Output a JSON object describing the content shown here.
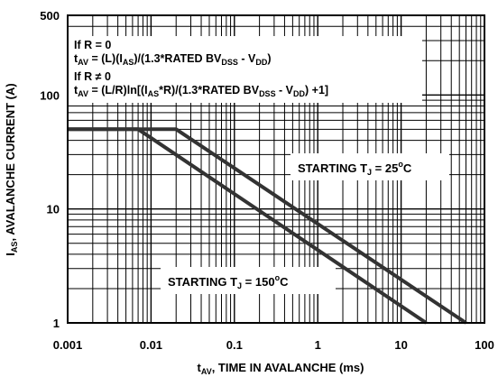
{
  "chart_data": {
    "type": "line",
    "title": "",
    "x_scale": "log",
    "y_scale": "log",
    "xlim": [
      0.001,
      100
    ],
    "ylim": [
      1,
      500
    ],
    "grid": true,
    "x_ticks": [
      {
        "value": 0.001,
        "label": "0.001"
      },
      {
        "value": 0.01,
        "label": "0.01"
      },
      {
        "value": 0.1,
        "label": "0.1"
      },
      {
        "value": 1,
        "label": "1"
      },
      {
        "value": 10,
        "label": "10"
      },
      {
        "value": 100,
        "label": "100"
      }
    ],
    "y_ticks": [
      {
        "value": 1,
        "label": "1"
      },
      {
        "value": 10,
        "label": "10"
      },
      {
        "value": 100,
        "label": "100"
      },
      {
        "value": 500,
        "label": "500"
      }
    ],
    "xlabel": {
      "main": "t",
      "sub": "AV",
      "rest": ", TIME IN AVALANCHE (ms)"
    },
    "ylabel": {
      "main": "I",
      "sub": "AS",
      "rest": ", AVALANCHE CURRENT (A)"
    },
    "series": [
      {
        "label": {
          "text": "STARTING T",
          "sub": "J",
          "eq": " = 25",
          "sup": "o",
          "unit": "C"
        },
        "color": "#333333",
        "points": [
          [
            0.001,
            50
          ],
          [
            0.02,
            50
          ],
          [
            60,
            1
          ]
        ]
      },
      {
        "label": {
          "text": "STARTING T",
          "sub": "J",
          "eq": " = 150",
          "sup": "o",
          "unit": "C"
        },
        "color": "#333333",
        "points": [
          [
            0.001,
            50
          ],
          [
            0.007,
            50
          ],
          [
            20,
            1
          ]
        ]
      }
    ],
    "annotations": {
      "line1": "If R = 0",
      "line2": {
        "t": "t",
        "tsub": "AV",
        "eq": " = (L)(I",
        "isub": "AS",
        "mid": ")/(1.3*RATED BV",
        "bsub": "DSS",
        "minus": " - V",
        "vsub": "DD",
        "end": ")"
      },
      "line3": "If R ≠ 0",
      "line4": {
        "t": "t",
        "tsub": "AV",
        "eq": " = (L/R)ln[(I",
        "isub": "AS",
        "mid": "*R)/(1.3*RATED BV",
        "bsub": "DSS",
        "minus": " - V",
        "vsub": "DD",
        "end": ") +1]"
      }
    }
  }
}
